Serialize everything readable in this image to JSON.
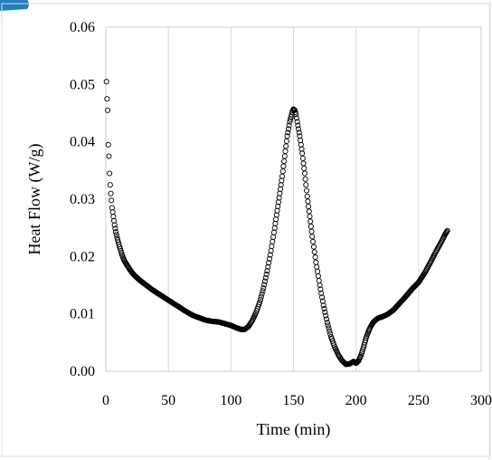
{
  "chart_data": {
    "type": "scatter",
    "title": "",
    "xlabel": "Time (min)",
    "ylabel": "Heat  Flow  (W/g)",
    "xlim": [
      0,
      300
    ],
    "ylim": [
      0,
      0.06
    ],
    "x_ticks": [
      "0",
      "50",
      "100",
      "150",
      "200",
      "250",
      "300"
    ],
    "y_ticks": [
      "0.00",
      "0.01",
      "0.02",
      "0.03",
      "0.04",
      "0.05",
      "0.06"
    ],
    "grid": "vertical",
    "marker": "open-circle",
    "marker_color": "#000000",
    "series": [
      {
        "x": [
          0.5,
          1.0,
          1.5,
          2.0,
          2.5,
          3.0,
          3.5,
          4.0,
          4.5,
          5,
          6,
          7,
          8,
          9,
          10,
          11,
          12,
          13,
          14,
          15,
          17,
          19,
          21,
          23,
          25,
          27,
          30,
          33,
          36,
          40,
          45,
          50,
          55,
          60,
          65,
          70,
          75,
          80,
          85,
          90,
          95,
          100,
          104,
          108,
          111,
          114,
          117,
          120,
          123,
          126,
          129,
          132,
          135,
          137,
          139,
          141,
          143,
          145,
          147,
          149,
          150,
          151,
          152,
          153,
          155,
          157,
          159,
          161,
          163,
          165,
          168,
          171,
          174,
          177,
          180,
          183,
          186,
          189,
          192,
          195,
          198,
          200,
          202,
          204,
          206,
          208,
          210,
          212,
          214,
          216,
          218,
          221,
          225,
          230,
          235,
          240,
          245,
          250,
          255,
          260,
          263,
          266,
          269,
          271,
          273
        ],
        "y": [
          0.0505,
          0.0475,
          0.0455,
          0.0395,
          0.0375,
          0.0345,
          0.0325,
          0.031,
          0.0298,
          0.0285,
          0.027,
          0.0255,
          0.0243,
          0.0233,
          0.0225,
          0.0217,
          0.021,
          0.0203,
          0.0197,
          0.0192,
          0.0185,
          0.0178,
          0.0172,
          0.0167,
          0.0163,
          0.0159,
          0.0154,
          0.0149,
          0.0144,
          0.0138,
          0.0131,
          0.0124,
          0.0117,
          0.011,
          0.0103,
          0.0097,
          0.0093,
          0.0089,
          0.0087,
          0.0086,
          0.0083,
          0.008,
          0.0076,
          0.0073,
          0.0073,
          0.0078,
          0.0088,
          0.0102,
          0.012,
          0.0145,
          0.0175,
          0.021,
          0.025,
          0.028,
          0.031,
          0.034,
          0.0375,
          0.041,
          0.0435,
          0.0452,
          0.0457,
          0.0455,
          0.0448,
          0.0435,
          0.041,
          0.038,
          0.0345,
          0.0305,
          0.027,
          0.0235,
          0.019,
          0.015,
          0.0115,
          0.0085,
          0.006,
          0.0042,
          0.0028,
          0.0018,
          0.0012,
          0.0013,
          0.0017,
          0.0014,
          0.0018,
          0.0028,
          0.0042,
          0.0058,
          0.007,
          0.0079,
          0.0086,
          0.009,
          0.0093,
          0.0095,
          0.0099,
          0.0107,
          0.0119,
          0.0131,
          0.0144,
          0.0155,
          0.0172,
          0.0192,
          0.0205,
          0.0217,
          0.0229,
          0.0238,
          0.0245
        ]
      }
    ]
  }
}
